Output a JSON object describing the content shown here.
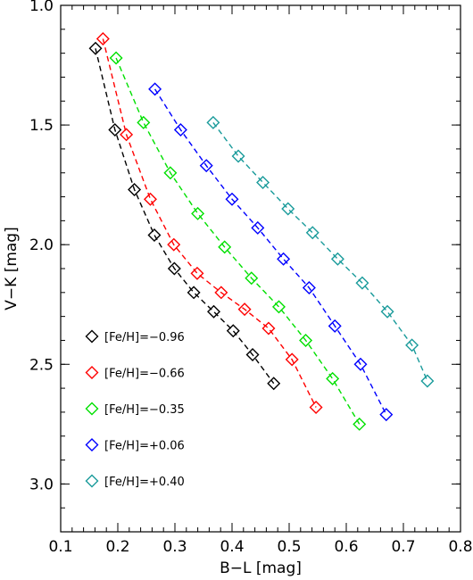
{
  "chart_data": {
    "type": "scatter",
    "title": "",
    "xlabel": "B−L [mag]",
    "ylabel": "V−K [mag]",
    "xlim": [
      0.1,
      0.8
    ],
    "ylim": [
      3.2,
      1.0
    ],
    "y_inverted": true,
    "x_ticks": [
      "0.1",
      "0.2",
      "0.3",
      "0.4",
      "0.5",
      "0.6",
      "0.7",
      "0.8"
    ],
    "y_ticks": [
      "1.0",
      "1.5",
      "2.0",
      "2.5",
      "3.0"
    ],
    "grid": false,
    "legend_position": "bottom-left",
    "marker": "diamond-open",
    "line_style": "dashed",
    "series": [
      {
        "name": "[Fe/H]=−0.96",
        "color": "#000000",
        "x": [
          0.161,
          0.195,
          0.229,
          0.264,
          0.299,
          0.333,
          0.368,
          0.402,
          0.436,
          0.473
        ],
        "y": [
          1.18,
          1.52,
          1.77,
          1.96,
          2.1,
          2.2,
          2.28,
          2.36,
          2.46,
          2.58
        ]
      },
      {
        "name": "[Fe/H]=−0.66",
        "color": "#ff0000",
        "x": [
          0.174,
          0.215,
          0.257,
          0.298,
          0.339,
          0.381,
          0.422,
          0.464,
          0.505,
          0.547
        ],
        "y": [
          1.14,
          1.54,
          1.81,
          2.0,
          2.12,
          2.2,
          2.27,
          2.35,
          2.48,
          2.68
        ]
      },
      {
        "name": "[Fe/H]=−0.35",
        "color": "#00e000",
        "x": [
          0.197,
          0.245,
          0.292,
          0.34,
          0.387,
          0.434,
          0.482,
          0.529,
          0.576,
          0.623
        ],
        "y": [
          1.22,
          1.49,
          1.7,
          1.87,
          2.01,
          2.14,
          2.26,
          2.4,
          2.56,
          2.75
        ]
      },
      {
        "name": "[Fe/H]=+0.06",
        "color": "#0000ff",
        "x": [
          0.265,
          0.31,
          0.355,
          0.4,
          0.445,
          0.49,
          0.535,
          0.58,
          0.625,
          0.67
        ],
        "y": [
          1.35,
          1.52,
          1.67,
          1.81,
          1.93,
          2.06,
          2.18,
          2.34,
          2.5,
          2.71
        ]
      },
      {
        "name": "[Fe/H]=+0.40",
        "color": "#1a9b9b",
        "x": [
          0.367,
          0.411,
          0.454,
          0.498,
          0.541,
          0.585,
          0.628,
          0.672,
          0.715,
          0.742
        ],
        "y": [
          1.49,
          1.63,
          1.74,
          1.85,
          1.95,
          2.06,
          2.16,
          2.28,
          2.42,
          2.57
        ]
      }
    ]
  }
}
